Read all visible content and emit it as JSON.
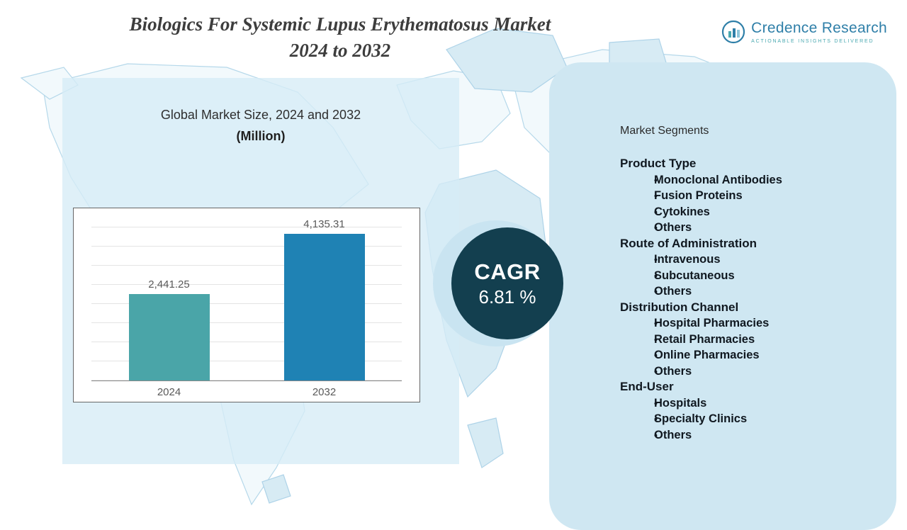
{
  "title": {
    "line1": "Biologics For Systemic Lupus Erythematosus Market",
    "line2": "2024 to 2032"
  },
  "logo": {
    "name": "Credence Research",
    "tagline": "Actionable Insights Delivered"
  },
  "chart_data": {
    "type": "bar",
    "title": "Global Market Size, 2024 and 2032",
    "subtitle": "(Million)",
    "categories": [
      "2024",
      "2032"
    ],
    "values": [
      2441.25,
      4135.31
    ],
    "value_labels": [
      "2,441.25",
      "4,135.31"
    ],
    "bar_colors": [
      "#4aa5a8",
      "#1f82b4"
    ],
    "ylim": [
      0,
      4600
    ],
    "grid": true,
    "legend": "none"
  },
  "cagr": {
    "label": "CAGR",
    "value": "6.81 %"
  },
  "segments": {
    "heading": "Market Segments",
    "groups": [
      {
        "name": "Product Type",
        "items": [
          "Monoclonal Antibodies",
          "Fusion Proteins",
          "Cytokines",
          "Others"
        ]
      },
      {
        "name": "Route of Administration",
        "items": [
          "Intravenous",
          "Subcutaneous",
          "Others"
        ]
      },
      {
        "name": "Distribution Channel",
        "items": [
          "Hospital Pharmacies",
          "Retail Pharmacies",
          "Online Pharmacies",
          "Others"
        ]
      },
      {
        "name": "End-User",
        "items": [
          "Hospitals",
          "Specialty Clinics",
          "Others"
        ]
      }
    ]
  },
  "colors": {
    "panel_light_blue": "#d6ecf6",
    "segments_panel": "#cfe7f2",
    "cagr_circle": "#133f4f",
    "cagr_back_circle": "#c9e4f1",
    "map_line": "#b5d8ea",
    "brand_blue": "#2f7fa8",
    "brand_teal": "#49a8b0"
  }
}
